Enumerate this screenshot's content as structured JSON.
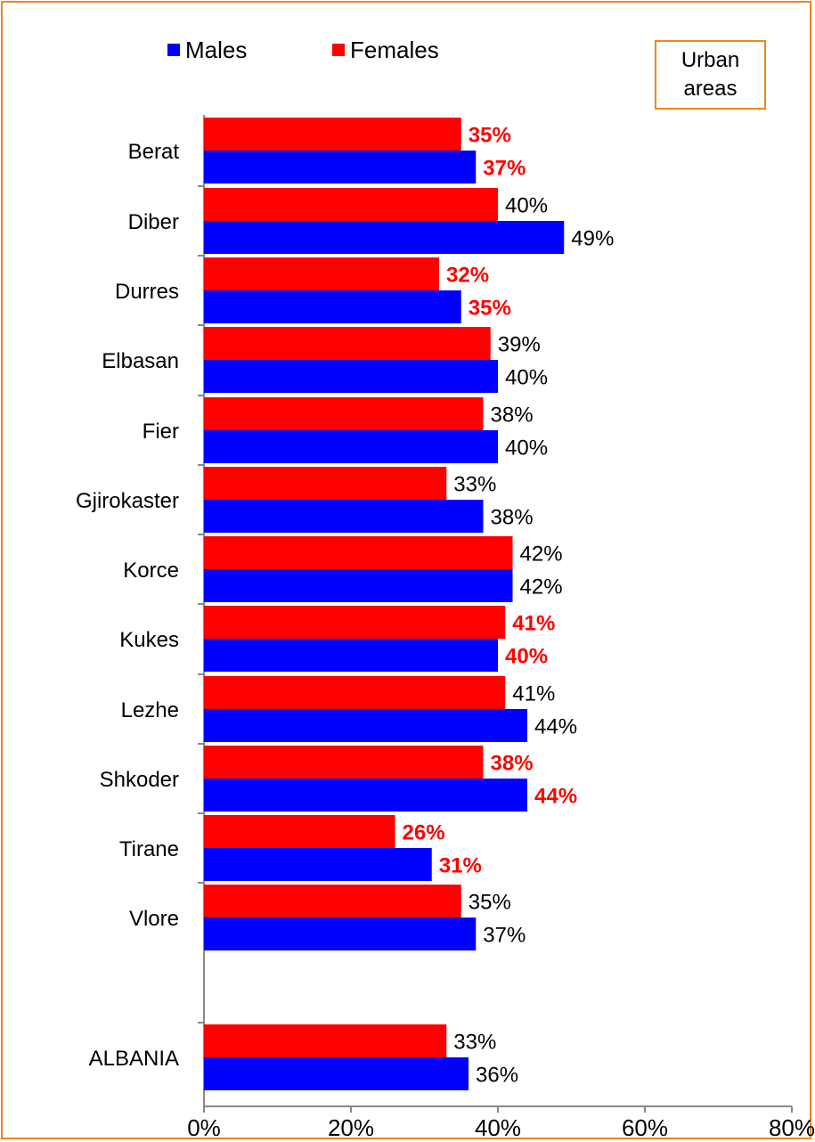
{
  "legend": {
    "males_label": "Males",
    "females_label": "Females",
    "males_color": "#0000ff",
    "females_color": "#ff0000"
  },
  "note": {
    "text": "Urban areas"
  },
  "highlight_color": "#ff0000",
  "chart_data": {
    "type": "bar",
    "orientation": "horizontal",
    "categories": [
      "Berat",
      "Diber",
      "Durres",
      "Elbasan",
      "Fier",
      "Gjirokaster",
      "Korce",
      "Kukes",
      "Lezhe",
      "Shkoder",
      "Tirane",
      "Vlore",
      "ALBANIA"
    ],
    "series": [
      {
        "name": "Females",
        "color": "#ff0000",
        "values": [
          35,
          40,
          32,
          39,
          38,
          33,
          42,
          41,
          41,
          38,
          26,
          35,
          33
        ],
        "labels": [
          "35%",
          "40%",
          "32%",
          "39%",
          "38%",
          "33%",
          "42%",
          "41%",
          "41%",
          "38%",
          "26%",
          "35%",
          "33%"
        ]
      },
      {
        "name": "Males",
        "color": "#0000ff",
        "values": [
          37,
          49,
          35,
          40,
          40,
          38,
          42,
          40,
          44,
          44,
          31,
          37,
          36
        ],
        "labels": [
          "37%",
          "49%",
          "35%",
          "40%",
          "40%",
          "38%",
          "42%",
          "40%",
          "44%",
          "44%",
          "31%",
          "37%",
          "36%"
        ]
      }
    ],
    "highlighted_categories": [
      "Berat",
      "Durres",
      "Kukes",
      "Shkoder",
      "Tirane"
    ],
    "xlim": [
      0,
      80
    ],
    "xticks": [
      0,
      20,
      40,
      60,
      80
    ],
    "xtick_labels": [
      "0%",
      "20%",
      "40%",
      "60%",
      "80%"
    ],
    "legend_position": "top",
    "grid": false
  }
}
